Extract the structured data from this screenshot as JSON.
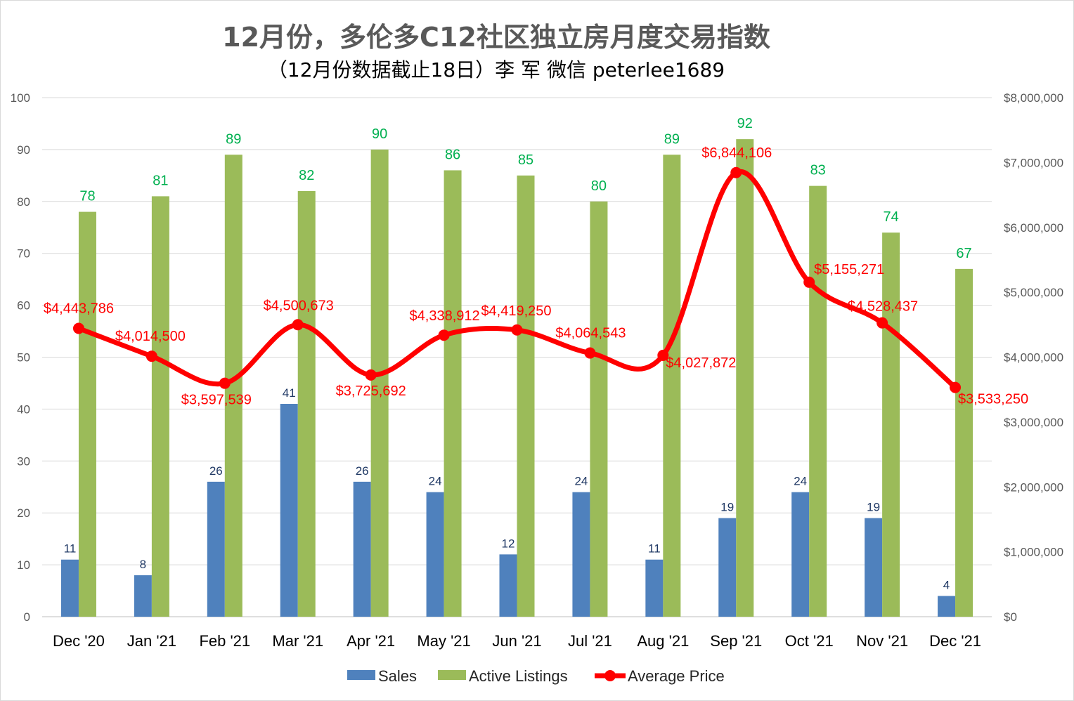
{
  "chart_data": {
    "type": "bar",
    "title": "12月份，多伦多C12社区独立房月度交易指数",
    "subtitle": "（12月份数据截止18日）李 军 微信 peterlee1689",
    "categories": [
      "Dec '20",
      "Jan '21",
      "Feb '21",
      "Mar '21",
      "Apr '21",
      "May '21",
      "Jun '21",
      "Jul '21",
      "Aug '21",
      "Sep '21",
      "Oct '21",
      "Nov '21",
      "Dec '21"
    ],
    "series": [
      {
        "name": "Sales",
        "type": "bar",
        "axis": "left",
        "color": "#4f81bd",
        "label_color": "#1f3864",
        "values": [
          11,
          8,
          26,
          41,
          26,
          24,
          12,
          24,
          11,
          19,
          24,
          19,
          4
        ]
      },
      {
        "name": "Active Listings",
        "type": "bar",
        "axis": "left",
        "color": "#9bbb59",
        "label_color": "#00b050",
        "values": [
          78,
          81,
          89,
          82,
          90,
          86,
          85,
          80,
          89,
          92,
          83,
          74,
          67
        ]
      },
      {
        "name": "Average Price",
        "type": "line",
        "axis": "right",
        "color": "#ff0000",
        "label_color": "#ff0000",
        "values": [
          4443786,
          4014500,
          3597539,
          4500673,
          3725692,
          4338912,
          4419250,
          4064543,
          4027872,
          6844106,
          5155271,
          4528437,
          3533250
        ],
        "labels": [
          "$4,443,786",
          "$4,014,500",
          "$3,597,539",
          "$4,500,673",
          "$3,725,692",
          "$4,338,912",
          "$4,419,250",
          "$4,064,543",
          "$4,027,872",
          "$6,844,106",
          "$5,155,271",
          "$4,528,437",
          "$3,533,250"
        ]
      }
    ],
    "y_left": {
      "range": [
        0,
        100
      ],
      "ticks": [
        "0",
        "10",
        "20",
        "30",
        "40",
        "50",
        "60",
        "70",
        "80",
        "90",
        "100"
      ]
    },
    "y_right": {
      "range": [
        0,
        8000000
      ],
      "ticks": [
        "$0",
        "$1,000,000",
        "$2,000,000",
        "$3,000,000",
        "$4,000,000",
        "$5,000,000",
        "$6,000,000",
        "$7,000,000",
        "$8,000,000"
      ]
    },
    "grid": true,
    "legend_position": "bottom"
  }
}
